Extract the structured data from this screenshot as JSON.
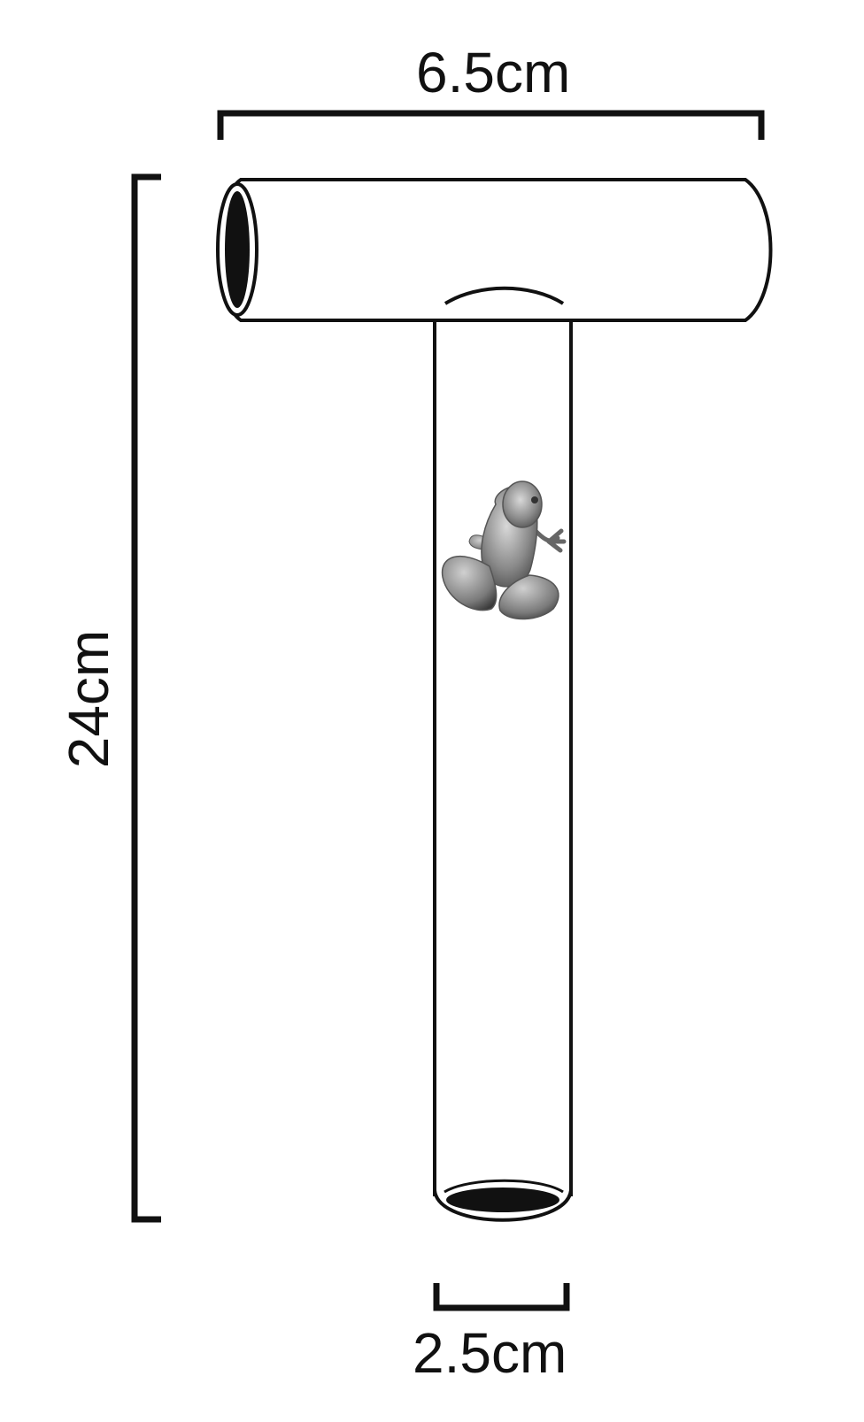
{
  "dimensions": {
    "top_width_label": "6.5cm",
    "height_label": "24cm",
    "tube_diameter_label": "2.5cm"
  },
  "colors": {
    "outline": "#111111",
    "background": "#ffffff",
    "opening": "#111111"
  },
  "icons": {
    "subject": "frog-icon"
  }
}
